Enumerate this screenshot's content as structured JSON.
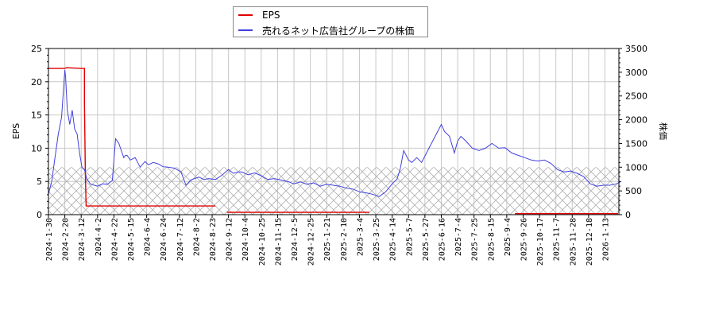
{
  "legend": {
    "items": [
      {
        "label": "EPS",
        "color": "#e00000"
      },
      {
        "label": "売れるネット広告社グループの株価",
        "color": "#4040e0"
      }
    ]
  },
  "chart_data": {
    "type": "line",
    "title": "",
    "xlabel": "",
    "ylabel_left": "EPS",
    "ylabel_right": "株価",
    "ylim_left": [
      0,
      25
    ],
    "ylim_right": [
      0,
      3500
    ],
    "yticks_left": [
      0,
      5,
      10,
      15,
      20,
      25
    ],
    "yticks_right": [
      0,
      500,
      1000,
      1500,
      2000,
      2500,
      3000,
      3500
    ],
    "grid": true,
    "legend_position": "top-center",
    "x_tick_labels": [
      "2024-1-30",
      "2024-2-20",
      "2024-3-12",
      "2024-4-2",
      "2024-4-22",
      "2024-5-15",
      "2024-6-4",
      "2024-6-24",
      "2024-7-12",
      "2024-8-2",
      "2024-8-23",
      "2024-9-12",
      "2024-10-4",
      "2024-10-25",
      "2024-11-15",
      "2024-12-5",
      "2024-12-25",
      "2025-1-21",
      "2025-2-10",
      "2025-3-4",
      "2025-3-25",
      "2025-4-14",
      "2025-5-7",
      "2025-5-27",
      "2025-6-16",
      "2025-7-4",
      "2025-7-25",
      "2025-8-15",
      "2025-9-4",
      "2025-9-26",
      "2025-10-17",
      "2025-11-7",
      "2025-11-28",
      "2025-12-18",
      "2026-1-13"
    ],
    "hatched_band_right_axis": [
      0,
      1000
    ],
    "series": [
      {
        "name": "EPS",
        "axis": "left",
        "color": "#e00000",
        "segments": [
          {
            "x_idx": [
              0,
              1.0,
              1.1,
              2.0,
              2.2,
              2.2,
              2.25,
              2.3,
              10.2
            ],
            "values": [
              22,
              22,
              22.1,
              22,
              22,
              17,
              6.5,
              1.3,
              1.3
            ]
          },
          {
            "x_idx": [
              10.9,
              19.6
            ],
            "values": [
              0.35,
              0.35
            ]
          },
          {
            "x_idx": [
              28.5,
              34.8
            ],
            "values": [
              0.15,
              0.15
            ]
          }
        ]
      },
      {
        "name": "売れるネット広告社グループの株価",
        "axis": "right",
        "color": "#4040e0",
        "x_idx": [
          0,
          0.2,
          0.4,
          0.6,
          0.8,
          1.0,
          1.05,
          1.15,
          1.3,
          1.45,
          1.6,
          1.75,
          1.9,
          2.05,
          2.2,
          2.35,
          2.55,
          2.8,
          3.0,
          3.3,
          3.6,
          3.9,
          4.1,
          4.3,
          4.5,
          4.6,
          4.7,
          4.8,
          5.0,
          5.3,
          5.6,
          5.9,
          6.1,
          6.4,
          6.7,
          7.0,
          7.3,
          7.7,
          8.1,
          8.4,
          8.7,
          9.0,
          9.2,
          9.5,
          9.8,
          10.2,
          10.6,
          11.0,
          11.3,
          11.6,
          11.8,
          12.2,
          12.6,
          13.0,
          13.4,
          13.8,
          14.2,
          14.6,
          15.0,
          15.4,
          15.8,
          16.2,
          16.6,
          17.0,
          17.4,
          17.8,
          18.2,
          18.6,
          19.0,
          19.4,
          19.8,
          20.2,
          20.6,
          21.0,
          21.3,
          21.5,
          21.7,
          22.0,
          22.2,
          22.5,
          22.8,
          23.1,
          23.4,
          23.7,
          24.0,
          24.2,
          24.5,
          24.8,
          25.0,
          25.2,
          25.5,
          25.9,
          26.3,
          26.7,
          27.1,
          27.5,
          27.9,
          28.3,
          28.7,
          29.1,
          29.5,
          29.9,
          30.3,
          30.7,
          31.1,
          31.5,
          31.9,
          32.3,
          32.7,
          33.1,
          33.5,
          33.9,
          34.3,
          34.7,
          35.0
        ],
        "values": [
          430,
          700,
          1200,
          1700,
          2050,
          3050,
          2900,
          2200,
          1900,
          2200,
          1800,
          1700,
          1300,
          1000,
          950,
          750,
          650,
          620,
          600,
          650,
          640,
          720,
          1600,
          1500,
          1300,
          1200,
          1250,
          1250,
          1150,
          1200,
          1000,
          1120,
          1050,
          1100,
          1070,
          1010,
          1000,
          980,
          900,
          620,
          730,
          770,
          790,
          740,
          760,
          740,
          830,
          950,
          870,
          900,
          900,
          840,
          880,
          820,
          740,
          760,
          730,
          700,
          650,
          690,
          640,
          670,
          600,
          640,
          620,
          600,
          560,
          540,
          480,
          460,
          430,
          380,
          480,
          650,
          750,
          980,
          1350,
          1150,
          1100,
          1200,
          1100,
          1300,
          1500,
          1700,
          1900,
          1750,
          1650,
          1300,
          1550,
          1650,
          1550,
          1400,
          1350,
          1400,
          1500,
          1400,
          1410,
          1300,
          1250,
          1200,
          1150,
          1130,
          1150,
          1080,
          950,
          900,
          920,
          870,
          800,
          650,
          600,
          620,
          620,
          650,
          700
        ]
      }
    ]
  }
}
